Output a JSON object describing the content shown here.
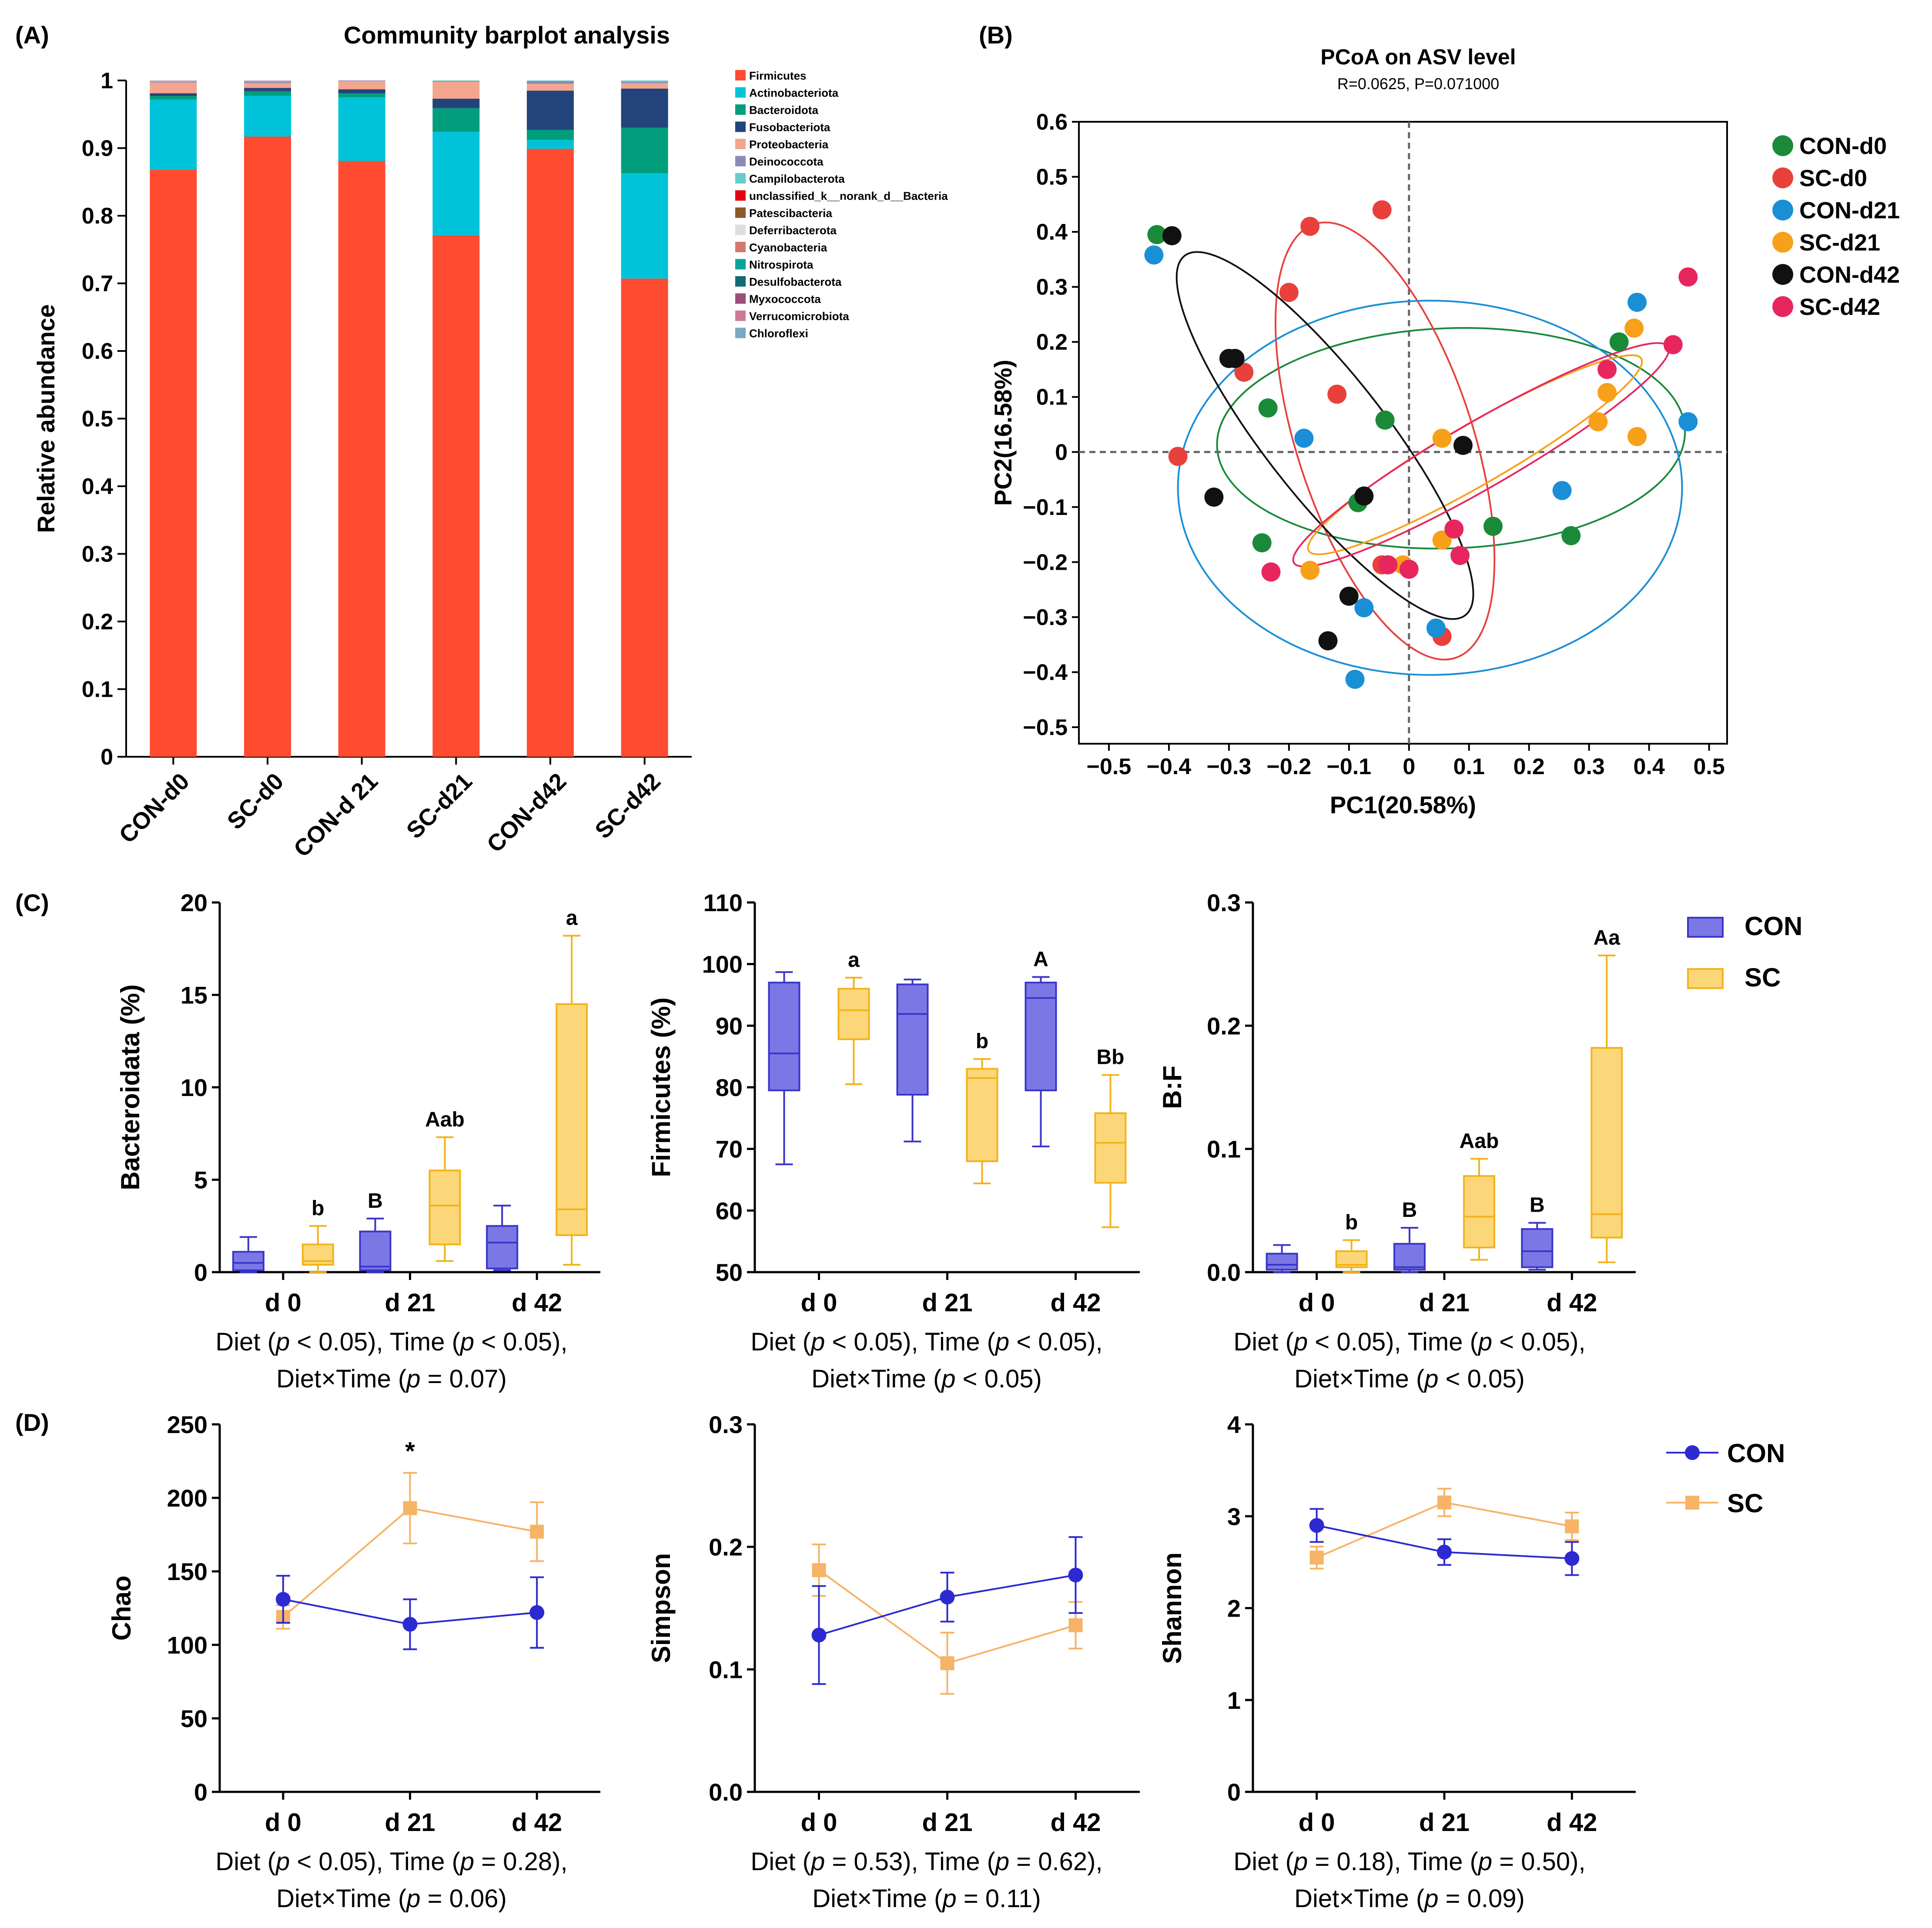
{
  "chart_data": [
    {
      "panel": "(A)",
      "type": "bar",
      "stacked": true,
      "title": "Community barplot analysis",
      "ylabel": "Relative abundance",
      "ylim": [
        0,
        1
      ],
      "yticks": [
        "0",
        "0.1",
        "0.2",
        "0.3",
        "0.4",
        "0.5",
        "0.6",
        "0.7",
        "0.8",
        "0.9",
        "1"
      ],
      "categories": [
        "CON-d0",
        "SC-d0",
        "CON-d 21",
        "SC-d21",
        "CON-d42",
        "SC-d42"
      ],
      "legend": [
        "Firmicutes",
        "Actinobacteriota",
        "Bacteroidota",
        "Fusobacteriota",
        "Proteobacteria",
        "Deinococcota",
        "Campilobacterota",
        "unclassified_k__norank_d__Bacteria",
        "Patescibacteria",
        "Deferribacterota",
        "Cyanobacteria",
        "Nitrospirota",
        "Desulfobacterota",
        "Myxococcota",
        "Verrucomicrobiota",
        "Chloroflexi"
      ],
      "colors": [
        "#ff4b30",
        "#00c3d9",
        "#009e7c",
        "#22447a",
        "#f4a58e",
        "#8c8ab8",
        "#66cccc",
        "#e60012",
        "#8b5a2b",
        "#dedede",
        "#d47a6a",
        "#0aa39a",
        "#126a74",
        "#9b4f76",
        "#cc7a94",
        "#7aa8c0"
      ],
      "series": [
        {
          "name": "Firmicutes",
          "values": [
            0.868,
            0.917,
            0.881,
            0.771,
            0.899,
            0.707
          ]
        },
        {
          "name": "Actinobacteriota",
          "values": [
            0.104,
            0.06,
            0.094,
            0.153,
            0.013,
            0.156
          ]
        },
        {
          "name": "Bacteroidota",
          "values": [
            0.005,
            0.007,
            0.006,
            0.035,
            0.015,
            0.067
          ]
        },
        {
          "name": "Fusobacteriota",
          "values": [
            0.004,
            0.005,
            0.006,
            0.014,
            0.058,
            0.058
          ]
        },
        {
          "name": "Proteobacteria",
          "values": [
            0.016,
            0.007,
            0.012,
            0.025,
            0.01,
            0.008
          ]
        },
        {
          "name": "Deinococcota",
          "values": [
            0.001,
            0.002,
            0.001,
            0.001,
            0.004,
            0.002
          ]
        },
        {
          "name": "Campilobacterota",
          "values": [
            0.001,
            0.001,
            0.0,
            0.001,
            0.001,
            0.002
          ]
        }
      ]
    },
    {
      "panel": "(B)",
      "type": "scatter",
      "title": "PCoA on ASV level",
      "subtitle": "R=0.0625, P=0.071000",
      "xlabel": "PC1(20.58%)",
      "ylabel": "PC2(16.58%)",
      "xlim": [
        -0.55,
        0.53
      ],
      "ylim": [
        -0.53,
        0.6
      ],
      "xticks": [
        "−0.5",
        "−0.4",
        "−0.3",
        "−0.2",
        "−0.1",
        "0",
        "0.1",
        "0.2",
        "0.3",
        "0.4",
        "0.5"
      ],
      "yticks": [
        "0.6",
        "0.5",
        "0.4",
        "0.3",
        "0.2",
        "0.1",
        "0",
        "−0.1",
        "−0.2",
        "−0.3",
        "−0.4",
        "−0.5"
      ],
      "groups": [
        {
          "name": "CON-d0",
          "color": "#1a8a3a",
          "points": [
            [
              -0.42,
              0.395
            ],
            [
              -0.235,
              0.08
            ],
            [
              -0.04,
              0.058
            ],
            [
              -0.085,
              -0.092
            ],
            [
              0.14,
              -0.135
            ],
            [
              -0.245,
              -0.165
            ],
            [
              0.27,
              -0.152
            ],
            [
              0.35,
              0.2
            ]
          ],
          "ellipse": {
            "cx": 0.07,
            "cy": 0.025,
            "rx": 0.39,
            "ry": 0.2,
            "angle": 2
          }
        },
        {
          "name": "SC-d0",
          "color": "#e8413c",
          "points": [
            [
              -0.165,
              0.41
            ],
            [
              -0.045,
              0.44
            ],
            [
              -0.2,
              0.29
            ],
            [
              -0.275,
              0.145
            ],
            [
              -0.12,
              0.105
            ],
            [
              -0.385,
              -0.008
            ],
            [
              0.055,
              -0.335
            ],
            [
              -0.045,
              -0.205
            ]
          ],
          "ellipse": {
            "cx": -0.04,
            "cy": 0.02,
            "rx": 0.38,
            "ry": 0.16,
            "angle": -72
          }
        },
        {
          "name": "CON-d21",
          "color": "#1a8fd6",
          "points": [
            [
              -0.425,
              0.358
            ],
            [
              -0.175,
              0.025
            ],
            [
              0.38,
              0.272
            ],
            [
              0.465,
              0.055
            ],
            [
              0.255,
              -0.07
            ],
            [
              -0.075,
              -0.283
            ],
            [
              0.045,
              -0.32
            ],
            [
              -0.09,
              -0.413
            ]
          ],
          "ellipse": {
            "cx": 0.035,
            "cy": -0.065,
            "rx": 0.42,
            "ry": 0.34,
            "angle": 0
          }
        },
        {
          "name": "SC-d21",
          "color": "#f7a11a",
          "points": [
            [
              0.375,
              0.225
            ],
            [
              0.33,
              0.108
            ],
            [
              0.315,
              0.055
            ],
            [
              0.38,
              0.028
            ],
            [
              0.055,
              0.025
            ],
            [
              -0.165,
              -0.215
            ],
            [
              0.055,
              -0.16
            ],
            [
              -0.01,
              -0.205
            ]
          ],
          "ellipse": {
            "cx": 0.11,
            "cy": -0.005,
            "rx": 0.32,
            "ry": 0.055,
            "angle": 30
          }
        },
        {
          "name": "CON-d42",
          "color": "#111111",
          "points": [
            [
              -0.395,
              0.393
            ],
            [
              -0.3,
              0.17
            ],
            [
              -0.29,
              0.17
            ],
            [
              0.09,
              0.012
            ],
            [
              -0.325,
              -0.082
            ],
            [
              -0.075,
              -0.08
            ],
            [
              -0.1,
              -0.262
            ],
            [
              -0.135,
              -0.343
            ]
          ],
          "ellipse": {
            "cx": -0.14,
            "cy": 0.03,
            "rx": 0.38,
            "ry": 0.11,
            "angle": -52
          }
        },
        {
          "name": "SC-d42",
          "color": "#e8265e",
          "points": [
            [
              0.465,
              0.318
            ],
            [
              0.44,
              0.195
            ],
            [
              0.33,
              0.15
            ],
            [
              0.075,
              -0.14
            ],
            [
              0.085,
              -0.188
            ],
            [
              -0.035,
              -0.205
            ],
            [
              0.0,
              -0.213
            ],
            [
              -0.23,
              -0.218
            ]
          ],
          "ellipse": {
            "cx": 0.12,
            "cy": -0.005,
            "rx": 0.36,
            "ry": 0.06,
            "angle": 30
          }
        }
      ]
    },
    {
      "panel": "(C)",
      "type": "box",
      "title": "Bacteroidata",
      "ylabel": "Bacteroidata (%)",
      "ylim": [
        0,
        20
      ],
      "ytick_values": [
        0,
        5,
        10,
        15,
        20
      ],
      "yticks": [
        "0",
        "5",
        "10",
        "15",
        "20"
      ],
      "categories": [
        "d 0",
        "d 21",
        "d 42"
      ],
      "caption": [
        "Diet (",
        "p",
        " < 0.05), Time (",
        "p",
        " < 0.05),",
        "Diet×Time (",
        "p",
        " = 0.07)"
      ],
      "series": [
        {
          "name": "CON",
          "boxes": [
            [
              0,
              0.1,
              0.5,
              1.1,
              1.9
            ],
            [
              0,
              0.1,
              0.3,
              2.2,
              2.9
            ],
            [
              0.1,
              0.2,
              1.6,
              2.5,
              3.6
            ]
          ],
          "labels": [
            "",
            "B",
            ""
          ]
        },
        {
          "name": "SC",
          "boxes": [
            [
              0,
              0.4,
              0.6,
              1.5,
              2.5
            ],
            [
              0.6,
              1.5,
              3.6,
              5.5,
              7.3
            ],
            [
              0.4,
              2.0,
              3.4,
              14.5,
              18.2
            ]
          ],
          "labels": [
            "b",
            "Aab",
            "a"
          ]
        }
      ]
    },
    {
      "panel": "(C)",
      "type": "box",
      "title": "Firmicutes",
      "ylabel": "Firmicutes (%)",
      "ylim": [
        50,
        110
      ],
      "ytick_values": [
        50,
        60,
        70,
        80,
        90,
        100,
        110
      ],
      "yticks": [
        "50",
        "60",
        "70",
        "80",
        "90",
        "100",
        "110"
      ],
      "categories": [
        "d 0",
        "d 21",
        "d 42"
      ],
      "caption": [
        "Diet (",
        "p",
        " < 0.05), Time (",
        "p",
        " < 0.05),",
        "Diet×Time (",
        "p",
        " < 0.05)"
      ],
      "series": [
        {
          "name": "CON",
          "boxes": [
            [
              67.5,
              79.5,
              85.5,
              97.0,
              98.7
            ],
            [
              71.2,
              78.8,
              91.9,
              96.7,
              97.5
            ],
            [
              70.4,
              79.5,
              94.5,
              97.0,
              97.9
            ]
          ],
          "labels": [
            "",
            "",
            "A"
          ]
        },
        {
          "name": "SC",
          "boxes": [
            [
              80.5,
              87.8,
              92.5,
              96.0,
              97.8
            ],
            [
              64.4,
              68.0,
              81.5,
              83.0,
              84.6
            ],
            [
              57.3,
              64.5,
              71.0,
              75.8,
              82.0
            ]
          ],
          "labels": [
            "a",
            "b",
            "Bb"
          ]
        }
      ]
    },
    {
      "panel": "(C)",
      "type": "box",
      "title": "B:F",
      "ylabel": "B:F",
      "ylim": [
        0,
        0.3
      ],
      "ytick_values": [
        0,
        0.1,
        0.2,
        0.3
      ],
      "yticks": [
        "0.0",
        "0.1",
        "0.2",
        "0.3"
      ],
      "categories": [
        "d 0",
        "d 21",
        "d 42"
      ],
      "caption": [
        "Diet (",
        "p",
        " < 0.05), Time (",
        "p",
        " < 0.05),",
        "Diet×Time (",
        "p",
        " < 0.05)"
      ],
      "legend": [
        "CON",
        "SC"
      ],
      "series": [
        {
          "name": "CON",
          "boxes": [
            [
              0,
              0.002,
              0.006,
              0.015,
              0.022
            ],
            [
              0,
              0.002,
              0.004,
              0.023,
              0.036
            ],
            [
              0.002,
              0.004,
              0.017,
              0.035,
              0.04
            ]
          ],
          "labels": [
            "",
            "B",
            "B"
          ]
        },
        {
          "name": "SC",
          "boxes": [
            [
              0,
              0.004,
              0.006,
              0.017,
              0.026
            ],
            [
              0.01,
              0.02,
              0.045,
              0.078,
              0.092
            ],
            [
              0.008,
              0.028,
              0.047,
              0.182,
              0.257
            ]
          ],
          "labels": [
            "b",
            "Aab",
            "Aa"
          ]
        }
      ]
    },
    {
      "panel": "(D)",
      "type": "line",
      "title": "Chao",
      "ylabel": "Chao",
      "ylim": [
        0,
        250
      ],
      "ytick_values": [
        0,
        50,
        100,
        150,
        200,
        250
      ],
      "yticks": [
        "0",
        "50",
        "100",
        "150",
        "200",
        "250"
      ],
      "categories": [
        "d 0",
        "d 21",
        "d 42"
      ],
      "caption": [
        "Diet (",
        "p",
        " < 0.05), Time (",
        "p",
        " = 0.28),",
        "Diet×Time (",
        "p",
        " = 0.06)"
      ],
      "annotations": [
        {
          "x": "d 21",
          "text": "*"
        }
      ],
      "series": [
        {
          "name": "CON",
          "values": [
            131,
            114,
            122
          ],
          "errors": [
            16,
            17,
            24
          ]
        },
        {
          "name": "SC",
          "values": [
            119,
            193,
            177
          ],
          "errors": [
            8,
            24,
            20
          ]
        }
      ]
    },
    {
      "panel": "(D)",
      "type": "line",
      "title": "Simpson",
      "ylabel": "Simpson",
      "ylim": [
        0,
        0.3
      ],
      "ytick_values": [
        0,
        0.1,
        0.2,
        0.3
      ],
      "yticks": [
        "0.0",
        "0.1",
        "0.2",
        "0.3"
      ],
      "categories": [
        "d 0",
        "d 21",
        "d 42"
      ],
      "caption": [
        "Diet (",
        "p",
        " = 0.53), Time (",
        "p",
        " = 0.62),",
        "Diet×Time (",
        "p",
        " = 0.11)"
      ],
      "series": [
        {
          "name": "CON",
          "values": [
            0.128,
            0.159,
            0.177
          ],
          "errors": [
            0.04,
            0.02,
            0.031
          ]
        },
        {
          "name": "SC",
          "values": [
            0.181,
            0.105,
            0.136
          ],
          "errors": [
            0.021,
            0.025,
            0.019
          ]
        }
      ]
    },
    {
      "panel": "(D)",
      "type": "line",
      "title": "Shannon",
      "ylabel": "Shannon",
      "ylim": [
        0,
        4
      ],
      "ytick_values": [
        0,
        1,
        2,
        3,
        4
      ],
      "yticks": [
        "0",
        "1",
        "2",
        "3",
        "4"
      ],
      "categories": [
        "d 0",
        "d 21",
        "d 42"
      ],
      "caption": [
        "Diet (",
        "p",
        " = 0.18), Time (",
        "p",
        " = 0.50),",
        "Diet×Time (",
        "p",
        " = 0.09)"
      ],
      "legend": [
        "CON",
        "SC"
      ],
      "series": [
        {
          "name": "CON",
          "values": [
            2.9,
            2.61,
            2.54
          ],
          "errors": [
            0.18,
            0.14,
            0.18
          ]
        },
        {
          "name": "SC",
          "values": [
            2.55,
            3.15,
            2.89
          ],
          "errors": [
            0.12,
            0.15,
            0.15
          ]
        }
      ]
    }
  ],
  "panel_labels": {
    "a": "(A)",
    "b": "(B)",
    "c": "(C)",
    "d": "(D)"
  },
  "colors": {
    "con_box_fill": "#7b78e6",
    "con_box_stroke": "#3a35c9",
    "sc_box_fill": "#fcd779",
    "sc_box_stroke": "#f2b31a",
    "con_line": "#2c2ad0",
    "sc_line": "#f7b366"
  }
}
